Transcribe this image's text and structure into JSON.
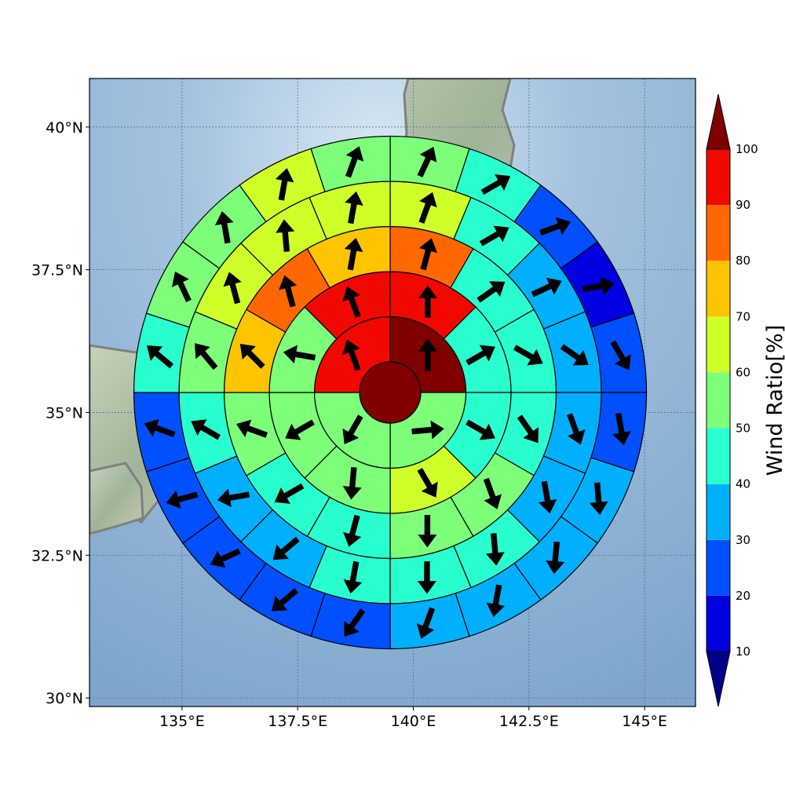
{
  "chart_data": {
    "type": "polar-sector-map",
    "colorbar_label": "Wind Ratio[%]",
    "colorbar": {
      "levels": [
        10,
        20,
        30,
        40,
        50,
        60,
        70,
        80,
        90,
        100
      ],
      "tick_labels": [
        "10",
        "20",
        "30",
        "40",
        "50",
        "60",
        "70",
        "80",
        "90",
        "100"
      ],
      "colors": [
        "#0000e0",
        "#0050ff",
        "#00b0ff",
        "#29ffce",
        "#7dff7a",
        "#ceff29",
        "#ffc400",
        "#ff6800",
        "#f10800"
      ],
      "under_color": "#00008b",
      "over_color": "#800000",
      "extend": "both"
    },
    "x_ticks": [
      {
        "value": 135,
        "label": "135°E"
      },
      {
        "value": 137.5,
        "label": "137.5°E"
      },
      {
        "value": 140,
        "label": "140°E"
      },
      {
        "value": 142.5,
        "label": "142.5°E"
      },
      {
        "value": 145,
        "label": "145°E"
      }
    ],
    "y_ticks": [
      {
        "value": 30,
        "label": "30°N"
      },
      {
        "value": 32.5,
        "label": "32.5°N"
      },
      {
        "value": 35,
        "label": "35°N"
      },
      {
        "value": 37.5,
        "label": "37.5°N"
      },
      {
        "value": 40,
        "label": "40°N"
      }
    ],
    "xlim": [
      133,
      146.1
    ],
    "ylim": [
      29.85,
      40.85
    ],
    "center": {
      "lon": 139.5,
      "lat": 35.35
    },
    "grid": true,
    "center_value": 100,
    "rings": [
      {
        "ring": 1,
        "sectors": 4,
        "values": [
          100,
          50,
          50,
          90
        ],
        "arrow_dir_deg": [
          0,
          85,
          210,
          340
        ]
      },
      {
        "ring": 2,
        "sectors": 8,
        "values": [
          90,
          45,
          45,
          60,
          50,
          50,
          50,
          90
        ],
        "arrow_dir_deg": [
          0,
          60,
          120,
          150,
          185,
          240,
          280,
          340
        ]
      },
      {
        "ring": 3,
        "sectors": 12,
        "values": [
          80,
          45,
          40,
          45,
          50,
          50,
          45,
          40,
          50,
          70,
          80,
          70
        ],
        "arrow_dir_deg": [
          15,
          55,
          120,
          145,
          160,
          180,
          195,
          240,
          290,
          315,
          345,
          10
        ]
      },
      {
        "ring": 4,
        "sectors": 16,
        "values": [
          60,
          45,
          30,
          30,
          30,
          30,
          40,
          40,
          40,
          30,
          30,
          40,
          50,
          60,
          60,
          60
        ],
        "arrow_dir_deg": [
          20,
          60,
          65,
          125,
          160,
          170,
          175,
          180,
          190,
          230,
          260,
          300,
          320,
          345,
          355,
          10
        ]
      },
      {
        "ring": 5,
        "sectors": 20,
        "values": [
          55,
          45,
          25,
          15,
          20,
          25,
          30,
          30,
          30,
          30,
          25,
          25,
          20,
          20,
          20,
          40,
          50,
          55,
          60,
          55
        ],
        "arrow_dir_deg": [
          25,
          60,
          70,
          80,
          150,
          170,
          175,
          185,
          190,
          200,
          215,
          230,
          245,
          255,
          290,
          310,
          335,
          350,
          10,
          20
        ]
      }
    ]
  }
}
